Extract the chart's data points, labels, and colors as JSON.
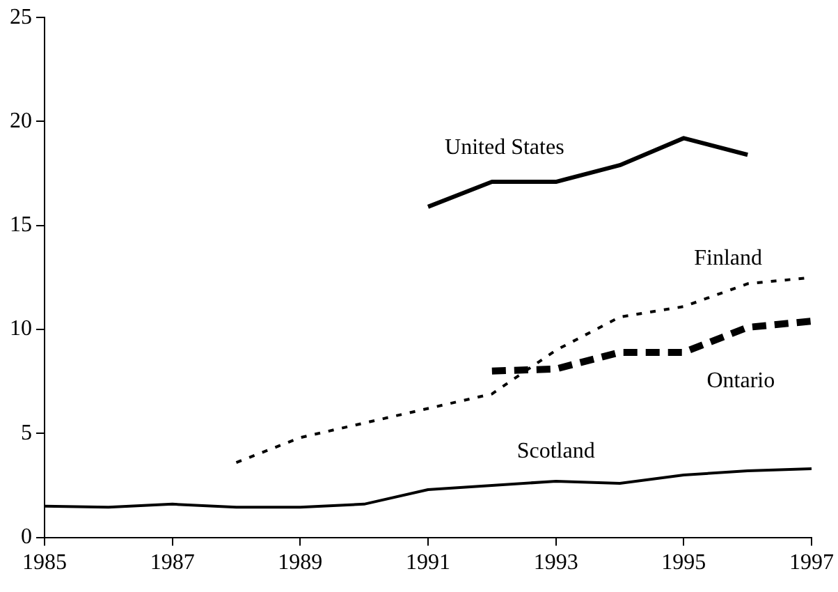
{
  "chart_data": {
    "type": "line",
    "xlim": [
      1985,
      1997
    ],
    "xticks": [
      1985,
      1987,
      1989,
      1991,
      1993,
      1995,
      1997
    ],
    "ylim": [
      0,
      25
    ],
    "yticks": [
      0,
      5,
      10,
      15,
      20,
      25
    ],
    "grid": false,
    "legend": false,
    "marker": "none",
    "series": [
      {
        "name": "United States",
        "color": "#000000",
        "line_style": "solid",
        "x": [
          1991,
          1992,
          1993,
          1994,
          1995,
          1996
        ],
        "values": [
          15.9,
          17.1,
          17.1,
          17.9,
          19.2,
          18.4
        ]
      },
      {
        "name": "Finland",
        "color": "#000000",
        "line_style": "dotted",
        "x": [
          1988,
          1989,
          1990,
          1991,
          1992,
          1993,
          1994,
          1995,
          1996,
          1997
        ],
        "values": [
          3.6,
          4.8,
          5.5,
          6.2,
          6.9,
          9.0,
          10.6,
          11.1,
          12.2,
          12.5
        ]
      },
      {
        "name": "Ontario",
        "color": "#000000",
        "line_style": "dashed",
        "x": [
          1992,
          1993,
          1994,
          1995,
          1996,
          1997
        ],
        "values": [
          8.0,
          8.1,
          8.9,
          8.9,
          10.1,
          10.4
        ]
      },
      {
        "name": "Scotland",
        "color": "#000000",
        "line_style": "solid",
        "x": [
          1985,
          1986,
          1987,
          1988,
          1989,
          1990,
          1991,
          1992,
          1993,
          1994,
          1995,
          1996,
          1997
        ],
        "values": [
          1.5,
          1.45,
          1.6,
          1.45,
          1.45,
          1.6,
          2.3,
          2.5,
          2.7,
          2.6,
          3.0,
          3.2,
          3.3
        ]
      }
    ]
  }
}
